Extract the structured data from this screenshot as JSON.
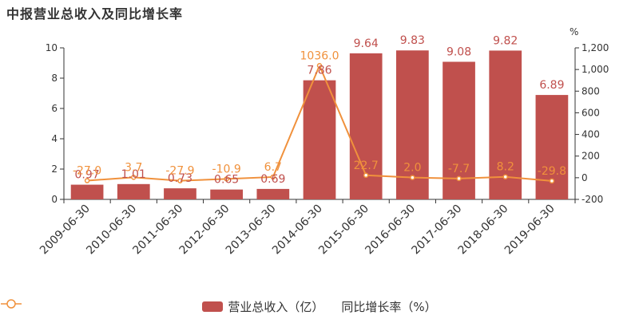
{
  "chart_data": {
    "type": "bar+line",
    "title": "中报营业总收入及同比增长率",
    "categories": [
      "2009-06-30",
      "2010-06-30",
      "2011-06-30",
      "2012-06-30",
      "2013-06-30",
      "2014-06-30",
      "2015-06-30",
      "2016-06-30",
      "2017-06-30",
      "2018-06-30",
      "2019-06-30"
    ],
    "series": [
      {
        "name": "营业总收入（亿）",
        "type": "bar",
        "axis": "left",
        "color": "#c0504d",
        "values": [
          0.97,
          1.01,
          0.73,
          0.65,
          0.69,
          7.86,
          9.64,
          9.83,
          9.08,
          9.82,
          6.89
        ],
        "labels": [
          "0.97",
          "1.01",
          "0.73",
          "0.65",
          "0.69",
          "7.86",
          "9.64",
          "9.83",
          "9.08",
          "9.82",
          "6.89"
        ]
      },
      {
        "name": "同比增长率（%）",
        "type": "line",
        "axis": "right",
        "color": "#f0913c",
        "values": [
          -27.0,
          3.7,
          -27.9,
          -10.9,
          6.7,
          1036.0,
          22.7,
          2.0,
          -7.7,
          8.2,
          -29.8
        ],
        "labels": [
          "-27.0",
          "3.7",
          "-27.9",
          "-10.9",
          "6.7",
          "1036.0",
          "22.7",
          "2.0",
          "-7.7",
          "8.2",
          "-29.8"
        ]
      }
    ],
    "yleft": {
      "lim": [
        0,
        10
      ],
      "ticks": [
        0,
        2,
        4,
        6,
        8,
        10
      ]
    },
    "yright": {
      "unit": "%",
      "lim": [
        -200,
        1200
      ],
      "ticks": [
        -200,
        0,
        200,
        400,
        600,
        800,
        "1,000",
        "1,200"
      ],
      "tickValues": [
        -200,
        0,
        200,
        400,
        600,
        800,
        1000,
        1200
      ]
    },
    "grid": false,
    "legend": "bottom-center"
  }
}
